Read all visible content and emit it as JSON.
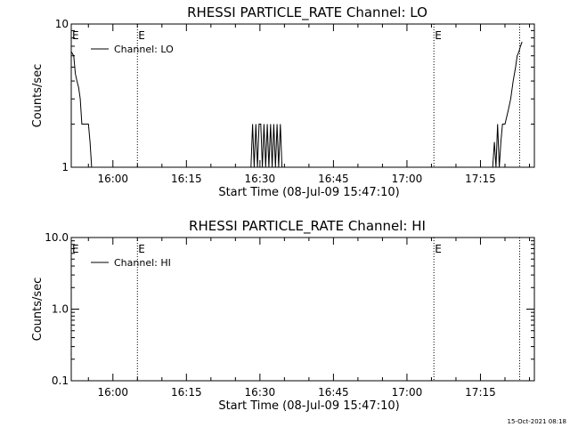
{
  "footer": {
    "timestamp": "15-Oct-2021 08:18"
  },
  "chart_data": [
    {
      "type": "line",
      "title": "RHESSI PARTICLE_RATE Channel: LO",
      "xlabel": "Start Time (08-Jul-09 15:47:10)",
      "ylabel": "Counts/sec",
      "y_scale": "log",
      "ylim": [
        1,
        10
      ],
      "xlim": [
        "15:51:30",
        "17:26:00"
      ],
      "x_ticks": [
        "16:00",
        "16:15",
        "16:30",
        "16:45",
        "17:00",
        "17:15"
      ],
      "y_ticks": [
        "1",
        "10"
      ],
      "legend": {
        "position": "top-left",
        "entries": [
          "Channel: LO"
        ]
      },
      "event_markers": [
        {
          "time": "16:05:00",
          "label": "E"
        },
        {
          "time": "17:05:30",
          "label": "E"
        }
      ],
      "extra_markers": [
        {
          "time": "15:51:30",
          "label": "E"
        },
        {
          "time": "17:23:00",
          "label": ""
        }
      ],
      "series": [
        {
          "name": "Channel: LO",
          "points": [
            [
              "15:51:30",
              6.4
            ],
            [
              "15:52:00",
              6.0
            ],
            [
              "15:52:20",
              4.5
            ],
            [
              "15:52:40",
              4.0
            ],
            [
              "15:53:00",
              3.6
            ],
            [
              "15:53:20",
              3.0
            ],
            [
              "15:53:40",
              2.0
            ],
            [
              "15:54:20",
              2.0
            ],
            [
              "15:55:00",
              2.0
            ],
            [
              "15:55:20",
              1.5
            ],
            [
              "15:55:40",
              1.0
            ],
            [
              "15:55:50",
              0.9
            ],
            [
              "16:28:00",
              0.9
            ],
            [
              "16:28:10",
              1.0
            ],
            [
              "16:28:30",
              2.0
            ],
            [
              "16:28:50",
              1.0
            ],
            [
              "16:29:10",
              2.0
            ],
            [
              "16:29:30",
              1.0
            ],
            [
              "16:29:50",
              2.0
            ],
            [
              "16:30:10",
              2.0
            ],
            [
              "16:30:30",
              1.0
            ],
            [
              "16:30:50",
              2.0
            ],
            [
              "16:31:10",
              1.0
            ],
            [
              "16:31:30",
              2.0
            ],
            [
              "16:31:50",
              1.0
            ],
            [
              "16:32:10",
              2.0
            ],
            [
              "16:32:30",
              1.0
            ],
            [
              "16:32:50",
              2.0
            ],
            [
              "16:33:10",
              1.0
            ],
            [
              "16:33:30",
              2.0
            ],
            [
              "16:33:50",
              1.0
            ],
            [
              "16:34:10",
              2.0
            ],
            [
              "16:34:30",
              1.0
            ],
            [
              "16:34:40",
              0.9
            ],
            [
              "17:17:20",
              0.9
            ],
            [
              "17:17:30",
              1.0
            ],
            [
              "17:17:50",
              1.5
            ],
            [
              "17:18:10",
              1.0
            ],
            [
              "17:18:30",
              2.0
            ],
            [
              "17:18:50",
              1.0
            ],
            [
              "17:19:10",
              1.5
            ],
            [
              "17:19:30",
              2.0
            ],
            [
              "17:20:00",
              2.0
            ],
            [
              "17:20:40",
              2.5
            ],
            [
              "17:21:10",
              3.0
            ],
            [
              "17:21:40",
              4.0
            ],
            [
              "17:22:10",
              5.0
            ],
            [
              "17:22:30",
              6.0
            ],
            [
              "17:22:50",
              6.4
            ],
            [
              "17:23:10",
              7.0
            ],
            [
              "17:23:30",
              7.5
            ]
          ]
        }
      ]
    },
    {
      "type": "line",
      "title": "RHESSI PARTICLE_RATE Channel: HI",
      "xlabel": "Start Time (08-Jul-09 15:47:10)",
      "ylabel": "Counts/sec",
      "y_scale": "log",
      "ylim": [
        0.1,
        10
      ],
      "xlim": [
        "15:51:30",
        "17:26:00"
      ],
      "x_ticks": [
        "16:00",
        "16:15",
        "16:30",
        "16:45",
        "17:00",
        "17:15"
      ],
      "y_ticks": [
        "0.1",
        "1.0",
        "10.0"
      ],
      "legend": {
        "position": "top-left",
        "entries": [
          "Channel: HI"
        ]
      },
      "event_markers": [
        {
          "time": "16:05:00",
          "label": "E"
        },
        {
          "time": "17:05:30",
          "label": "E"
        }
      ],
      "extra_markers": [
        {
          "time": "15:51:30",
          "label": "E"
        },
        {
          "time": "17:23:00",
          "label": ""
        }
      ],
      "series": [
        {
          "name": "Channel: HI",
          "points": []
        }
      ]
    }
  ]
}
